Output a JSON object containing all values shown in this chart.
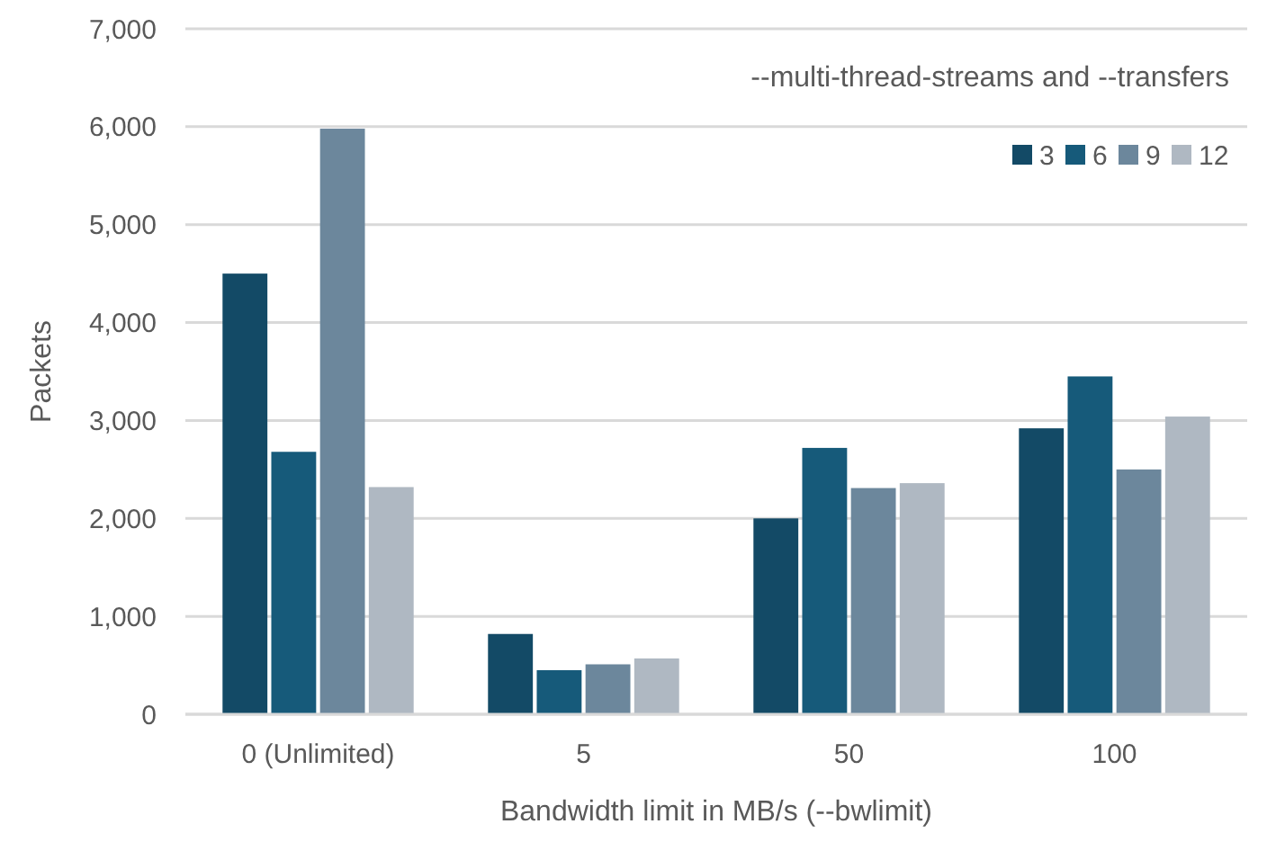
{
  "chart_data": {
    "type": "bar",
    "xlabel": "Bandwidth limit in MB/s (--bwlimit)",
    "ylabel": "Packets",
    "legend_title": "--multi-thread-streams and --transfers",
    "legend": "top right",
    "grid": "y",
    "categories": [
      "0 (Unlimited)",
      "5",
      "50",
      "100"
    ],
    "series": [
      {
        "name": "3",
        "color": "#134a66",
        "values": [
          4500,
          820,
          2000,
          2920
        ]
      },
      {
        "name": "6",
        "color": "#165a7a",
        "values": [
          2680,
          450,
          2720,
          3450
        ]
      },
      {
        "name": "9",
        "color": "#6c879c",
        "values": [
          5980,
          510,
          2310,
          2500
        ]
      },
      {
        "name": "12",
        "color": "#afb8c2",
        "values": [
          2320,
          570,
          2360,
          3040
        ]
      }
    ],
    "ylim": [
      0,
      7000
    ],
    "yticks": [
      {
        "value": 0,
        "label": "0"
      },
      {
        "value": 1000,
        "label": "1,000"
      },
      {
        "value": 2000,
        "label": "2,000"
      },
      {
        "value": 3000,
        "label": "3,000"
      },
      {
        "value": 4000,
        "label": "4,000"
      },
      {
        "value": 5000,
        "label": "5,000"
      },
      {
        "value": 6000,
        "label": "6,000"
      },
      {
        "value": 7000,
        "label": "7,000"
      }
    ]
  }
}
